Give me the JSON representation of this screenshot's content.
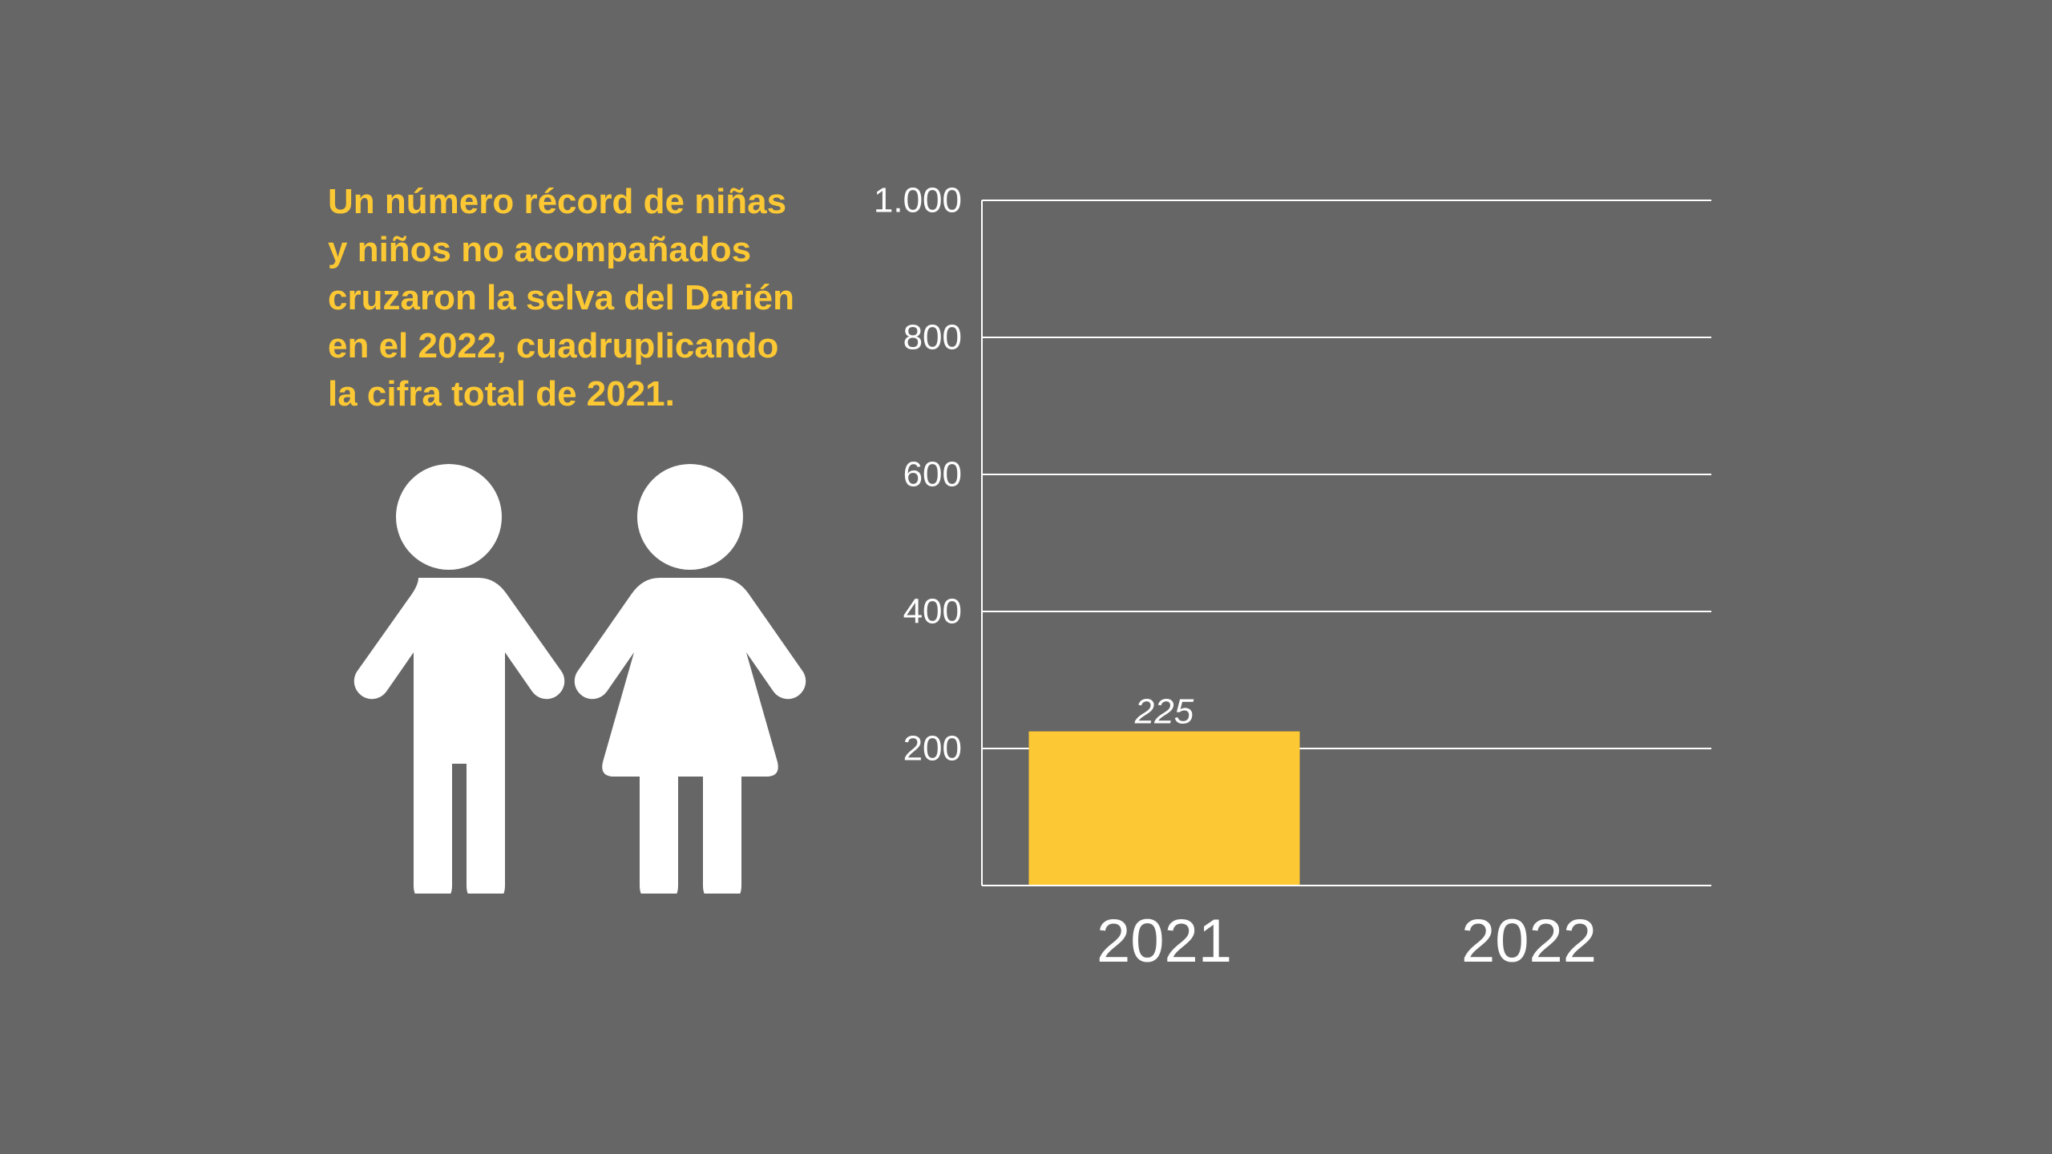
{
  "headline": "Un número récord de niñas\ny niños no acompañados\ncruzaron la selva del Darién\nen el 2022, cuadruplicando\nla cifra total de 2021.",
  "illustration": {
    "icon": "children-icon",
    "color": "#ffffff"
  },
  "colors": {
    "background": "#666666",
    "accent": "#fcc833",
    "text": "#ffffff"
  },
  "chart_data": {
    "type": "bar",
    "categories": [
      "2021",
      "2022"
    ],
    "values": [
      225,
      null
    ],
    "data_labels": [
      "225",
      ""
    ],
    "ylim": [
      0,
      1000
    ],
    "yticks": [
      {
        "value": 200,
        "label": "200"
      },
      {
        "value": 400,
        "label": "400"
      },
      {
        "value": 600,
        "label": "600"
      },
      {
        "value": 800,
        "label": "800"
      },
      {
        "value": 1000,
        "label": "1.000"
      }
    ],
    "grid": true,
    "bar_color": "#fcc833",
    "xlabel": "",
    "ylabel": "",
    "title": ""
  }
}
